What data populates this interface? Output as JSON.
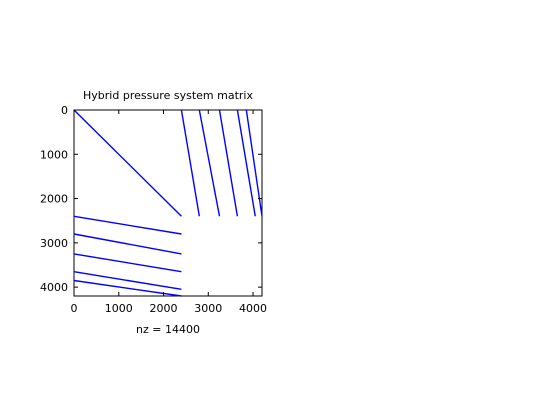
{
  "chart_data": {
    "type": "spy",
    "title": "Hybrid pressure system matrix",
    "xlabel": "nz = 14400",
    "ylabel": "",
    "xlim": [
      0,
      4200
    ],
    "ylim": [
      4200,
      0
    ],
    "xticks": [
      0,
      1000,
      2000,
      3000,
      4000
    ],
    "yticks": [
      0,
      1000,
      2000,
      3000,
      4000
    ],
    "nonzeros": 14400,
    "marker_color": "#0000ff",
    "segments": [
      {
        "name": "diagonal",
        "from": [
          0,
          0
        ],
        "to": [
          2400,
          2400
        ]
      },
      {
        "name": "upper-right-band-1",
        "from": [
          2400,
          0
        ],
        "to": [
          2800,
          2400
        ]
      },
      {
        "name": "upper-right-band-2",
        "from": [
          2800,
          0
        ],
        "to": [
          3250,
          2400
        ]
      },
      {
        "name": "upper-right-band-3",
        "from": [
          3250,
          0
        ],
        "to": [
          3650,
          2400
        ]
      },
      {
        "name": "upper-right-band-4",
        "from": [
          3650,
          0
        ],
        "to": [
          4050,
          2400
        ]
      },
      {
        "name": "upper-right-band-5",
        "from": [
          3850,
          0
        ],
        "to": [
          4200,
          2400
        ]
      },
      {
        "name": "lower-left-band-1",
        "from": [
          0,
          2400
        ],
        "to": [
          2400,
          2800
        ]
      },
      {
        "name": "lower-left-band-2",
        "from": [
          0,
          2800
        ],
        "to": [
          2400,
          3250
        ]
      },
      {
        "name": "lower-left-band-3",
        "from": [
          0,
          3250
        ],
        "to": [
          2400,
          3650
        ]
      },
      {
        "name": "lower-left-band-4",
        "from": [
          0,
          3650
        ],
        "to": [
          2400,
          4050
        ]
      },
      {
        "name": "lower-left-band-5",
        "from": [
          0,
          3850
        ],
        "to": [
          2400,
          4200
        ]
      }
    ]
  }
}
